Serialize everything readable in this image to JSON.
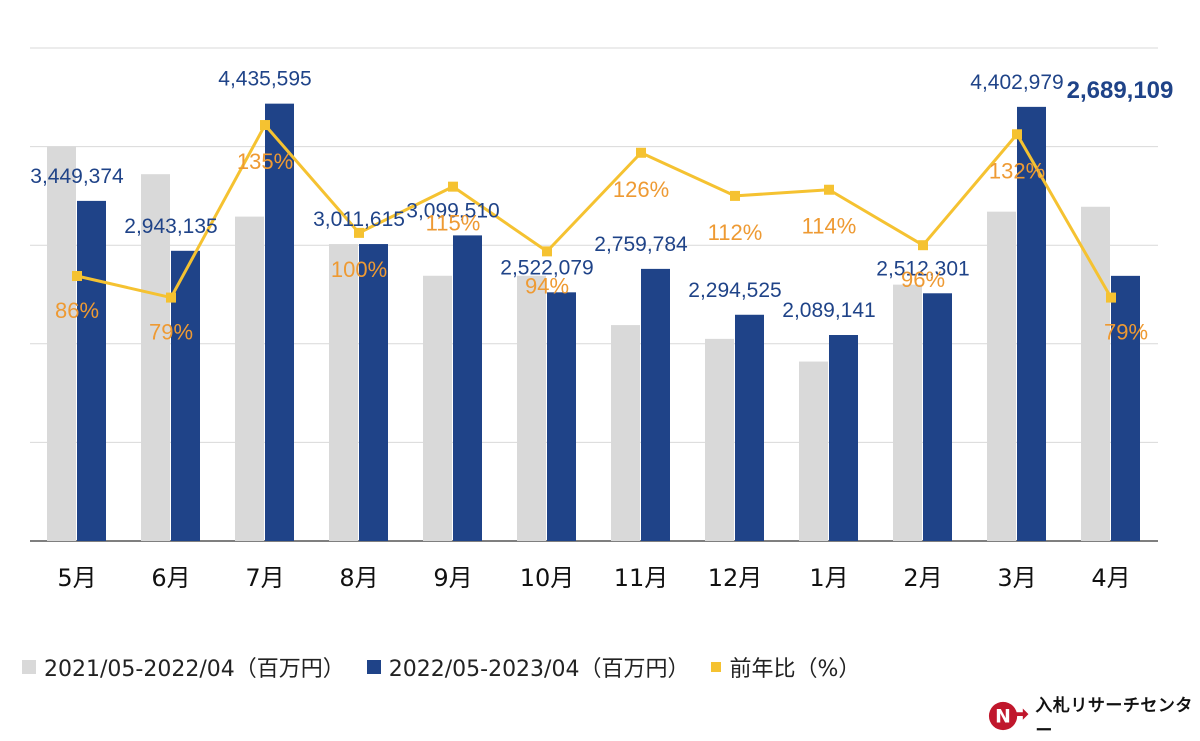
{
  "chart_data": {
    "type": "bar",
    "categories": [
      "5月",
      "6月",
      "7月",
      "8月",
      "9月",
      "10月",
      "11月",
      "12月",
      "1月",
      "2月",
      "3月",
      "4月"
    ],
    "series": [
      {
        "name": "2021/05-2022/04（百万円）",
        "type": "bar",
        "color": "#d9d9d9",
        "values": [
          4003000,
          3720000,
          3290000,
          3011615,
          2690000,
          2690000,
          2190000,
          2050000,
          1820000,
          2600000,
          3340000,
          3390000
        ],
        "show_labels": false
      },
      {
        "name": "2022/05-2023/04（百万円）",
        "type": "bar",
        "color": "#1f4388",
        "values": [
          3449374,
          2943135,
          4435595,
          3011615,
          3099510,
          2522079,
          2759784,
          2294525,
          2089141,
          2512301,
          4402979,
          2689109
        ],
        "labels": [
          "3,449,374",
          "2,943,135",
          "4,435,595",
          "3,011,615",
          "3,099,510",
          "2,522,079",
          "2,759,784",
          "2,294,525",
          "2,089,141",
          "2,512,301",
          "4,402,979",
          "2,689,109"
        ]
      },
      {
        "name": "前年比（%）",
        "type": "line",
        "color": "#f5c231",
        "label_color": "#ee9a33",
        "values": [
          86,
          79,
          135,
          100,
          115,
          94,
          126,
          112,
          114,
          96,
          132,
          79
        ],
        "labels": [
          "86%",
          "79%",
          "135%",
          "100%",
          "115%",
          "94%",
          "126%",
          "112%",
          "114%",
          "96%",
          "132%",
          "79%"
        ]
      }
    ],
    "ylim": [
      0,
      5000000
    ],
    "y2lim": [
      0,
      160
    ],
    "grid": true,
    "legend_position": "bottom-left"
  },
  "logo": {
    "text": "入札リサーチセンター"
  }
}
